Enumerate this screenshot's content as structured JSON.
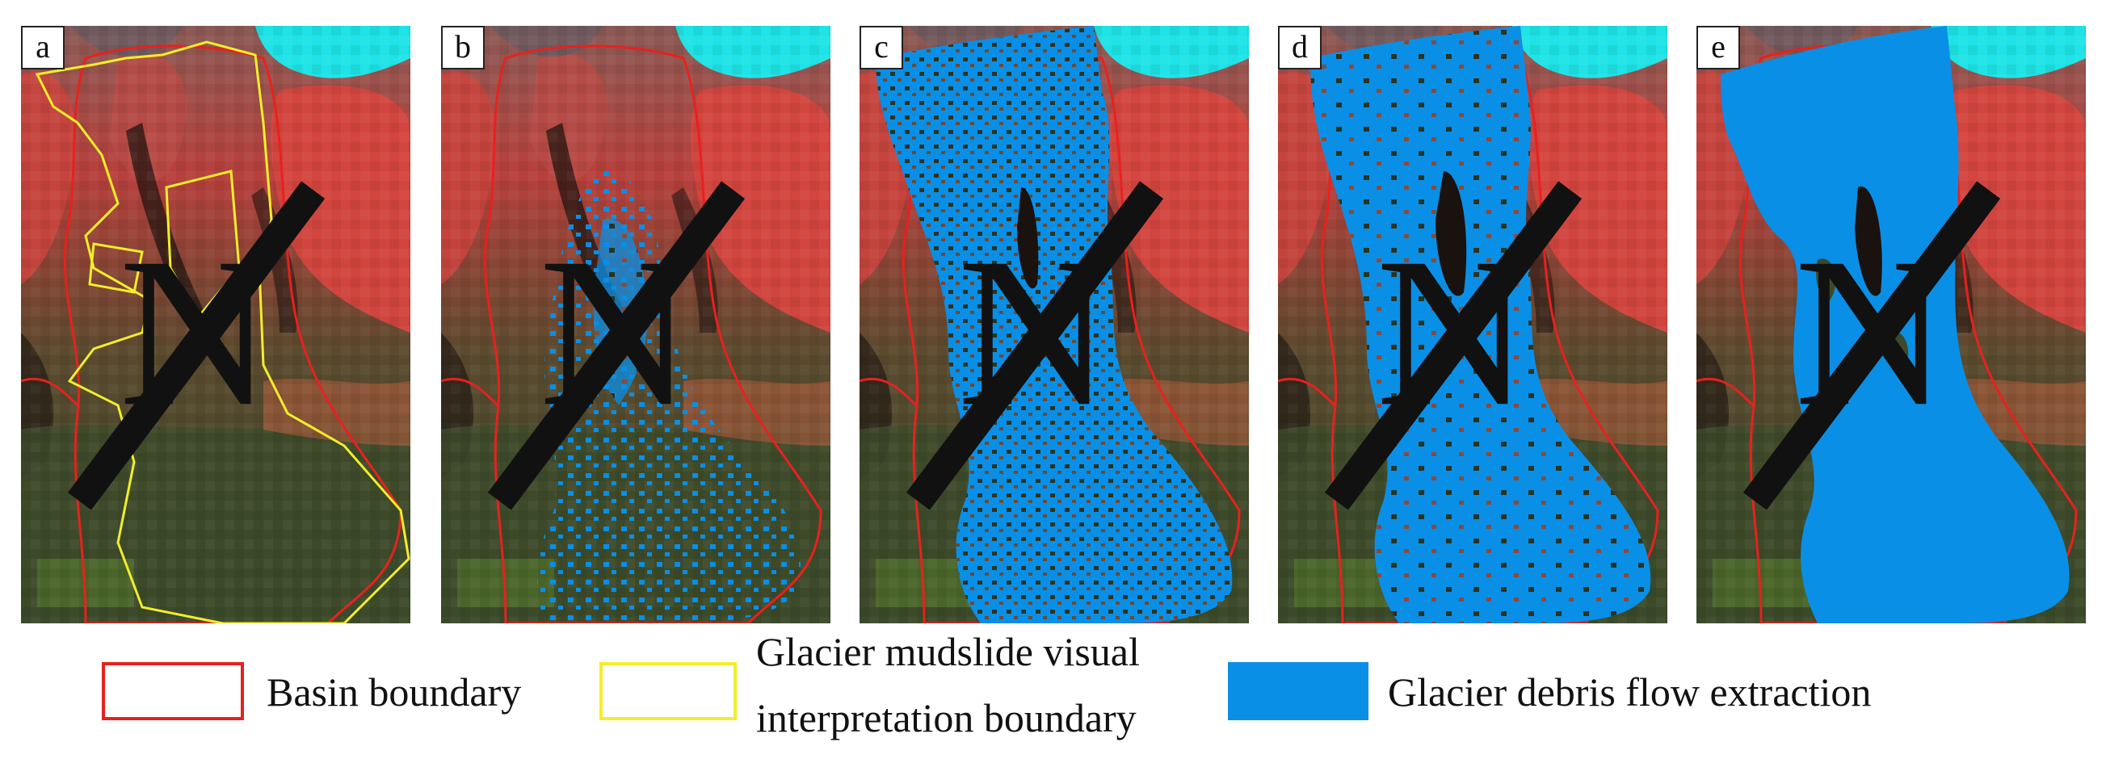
{
  "panels": [
    {
      "label": "a",
      "overlay": "visual-boundary"
    },
    {
      "label": "b",
      "overlay": "sparse-extraction"
    },
    {
      "label": "c",
      "overlay": "dense-speckled-extraction"
    },
    {
      "label": "d",
      "overlay": "dense-extraction"
    },
    {
      "label": "e",
      "overlay": "solid-extraction"
    }
  ],
  "legend": {
    "basin": {
      "label": "Basin boundary",
      "color": "#e8211e"
    },
    "visual": {
      "label_line1": "Glacier mudslide visual",
      "label_line2": "interpretation boundary",
      "color": "#f2ee2a"
    },
    "extraction": {
      "label": "Glacier debris flow extraction",
      "color": "#0a8fe6"
    }
  },
  "colors": {
    "vegetation_red": "#d8463f",
    "dark_green": "#3c4a2a",
    "snow_cyan": "#1fe3e6"
  },
  "icons": {
    "north": "north-arrow-icon"
  }
}
